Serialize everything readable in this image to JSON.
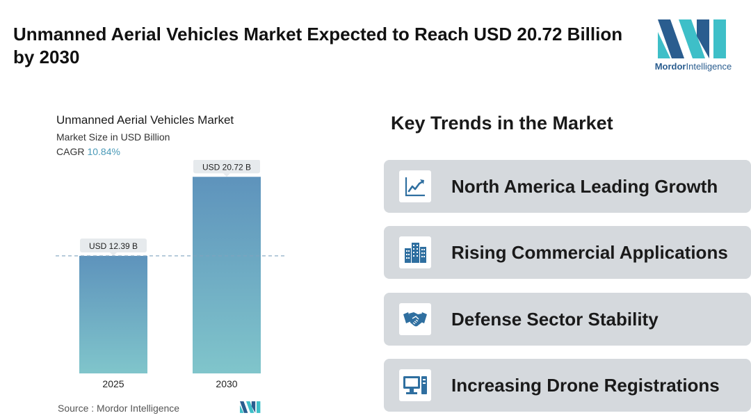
{
  "header": {
    "title": "Unmanned Aerial Vehicles Market Expected to Reach USD 20.72 Billion by 2030",
    "logo_text_bold": "Mordor",
    "logo_text_rest": "Intelligence"
  },
  "chart_data": {
    "type": "bar",
    "title": "Unmanned Aerial Vehicles Market",
    "subtitle": "Market Size in USD Billion",
    "cagr_label": "CAGR",
    "cagr_value": "10.84%",
    "categories": [
      "2025",
      "2030"
    ],
    "values": [
      12.39,
      20.72
    ],
    "data_labels": [
      "USD 12.39 B",
      "USD 20.72 B"
    ],
    "ylim": [
      0,
      22.5
    ],
    "reference_line": 12.39,
    "colors": {
      "bar_top": "#5e93bc",
      "bar_bottom": "#80c5cb",
      "label_bg": "#e6eaed",
      "ref_line": "#7fa3bf"
    }
  },
  "source": {
    "text": "Source :  Mordor Intelligence"
  },
  "trends": {
    "title": "Key Trends in the Market",
    "items": [
      {
        "label": "North America Leading Growth",
        "icon": "line-chart-icon"
      },
      {
        "label": "Rising Commercial Applications",
        "icon": "buildings-icon"
      },
      {
        "label": "Defense Sector Stability",
        "icon": "handshake-icon"
      },
      {
        "label": "Increasing Drone Registrations",
        "icon": "computer-icon"
      }
    ]
  },
  "colors": {
    "brand_dark": "#2a5d8f",
    "brand_teal": "#3ebfc8",
    "card_bg": "#d5d9dd",
    "icon_color": "#2f6fa0"
  }
}
